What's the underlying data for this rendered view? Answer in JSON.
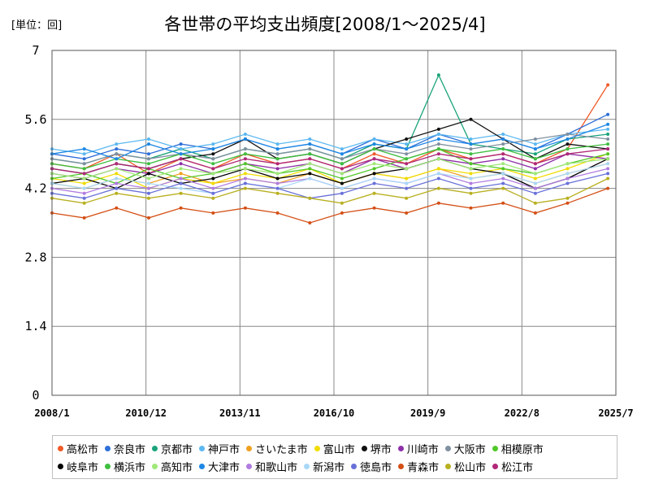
{
  "unit_label": "[単位：回]",
  "chart_data": {
    "type": "line",
    "title": "各世帯の平均支出頻度[2008/1～2025/4]",
    "xlabel": "",
    "ylabel": "",
    "x_ticks": [
      "2008/1",
      "2010/12",
      "2013/11",
      "2016/10",
      "2019/9",
      "2022/8",
      "2025/7"
    ],
    "y_ticks": [
      "7",
      "5.6",
      "4.2",
      "2.8",
      "1.4",
      "0"
    ],
    "ylim": [
      0,
      7
    ],
    "xlim": [
      "2008/1",
      "2025/7"
    ],
    "grid": true,
    "legend_position": "bottom",
    "x": [
      "2008/1",
      "2009/1",
      "2010/1",
      "2011/1",
      "2012/1",
      "2013/1",
      "2014/1",
      "2015/1",
      "2016/1",
      "2017/1",
      "2018/1",
      "2019/1",
      "2020/1",
      "2021/1",
      "2022/1",
      "2023/1",
      "2024/1",
      "2025/4"
    ],
    "series": [
      {
        "name": "高松市",
        "color": "#f05a28",
        "values": [
          4.7,
          4.6,
          4.9,
          4.5,
          4.8,
          4.6,
          4.9,
          4.7,
          4.8,
          4.6,
          4.9,
          4.7,
          5.0,
          4.8,
          4.9,
          4.7,
          5.0,
          6.3
        ]
      },
      {
        "name": "奈良市",
        "color": "#2e6fd8",
        "values": [
          4.9,
          4.8,
          5.0,
          4.9,
          5.1,
          5.0,
          5.2,
          5.0,
          5.1,
          4.9,
          5.2,
          5.0,
          5.3,
          5.1,
          5.2,
          5.0,
          5.3,
          5.7
        ]
      },
      {
        "name": "京都市",
        "color": "#1aa37a",
        "values": [
          4.8,
          4.7,
          4.9,
          4.8,
          5.0,
          4.8,
          5.0,
          4.9,
          5.0,
          4.8,
          5.1,
          5.0,
          6.5,
          5.1,
          5.0,
          4.9,
          5.2,
          5.3
        ]
      },
      {
        "name": "神戸市",
        "color": "#5cb8f0",
        "values": [
          5.0,
          4.9,
          5.1,
          5.2,
          5.0,
          5.1,
          5.3,
          5.1,
          5.2,
          5.0,
          5.2,
          5.1,
          5.3,
          5.2,
          5.3,
          5.1,
          5.3,
          5.4
        ]
      },
      {
        "name": "さいたま市",
        "color": "#f0a020",
        "values": [
          4.3,
          4.2,
          4.4,
          4.3,
          4.5,
          4.3,
          4.4,
          4.3,
          4.5,
          4.3,
          4.5,
          4.4,
          4.6,
          4.4,
          4.5,
          4.3,
          4.5,
          4.7
        ]
      },
      {
        "name": "富山市",
        "color": "#f0dc00",
        "values": [
          4.4,
          4.3,
          4.5,
          4.2,
          4.4,
          4.3,
          4.5,
          4.4,
          4.6,
          4.3,
          4.5,
          4.4,
          4.6,
          4.5,
          4.6,
          4.4,
          4.6,
          4.9
        ]
      },
      {
        "name": "堺市",
        "color": "#111111",
        "values": [
          4.6,
          4.5,
          4.7,
          4.6,
          4.8,
          4.9,
          5.2,
          4.8,
          4.9,
          4.7,
          5.0,
          5.2,
          5.4,
          5.6,
          5.2,
          4.8,
          5.1,
          5.0
        ]
      },
      {
        "name": "川崎市",
        "color": "#8e2fa8",
        "values": [
          4.5,
          4.4,
          4.6,
          4.5,
          4.7,
          4.5,
          4.7,
          4.6,
          4.7,
          4.5,
          4.8,
          4.6,
          4.8,
          4.7,
          4.8,
          4.6,
          4.9,
          4.8
        ]
      },
      {
        "name": "大阪市",
        "color": "#8090a0",
        "values": [
          4.8,
          4.7,
          4.9,
          4.8,
          4.9,
          4.8,
          5.0,
          4.9,
          5.0,
          4.8,
          5.0,
          4.9,
          5.1,
          5.0,
          5.1,
          5.2,
          5.3,
          5.2
        ]
      },
      {
        "name": "相模原市",
        "color": "#50c828",
        "values": [
          4.4,
          4.5,
          4.3,
          4.6,
          4.4,
          4.5,
          4.7,
          4.5,
          4.6,
          4.4,
          4.6,
          4.8,
          5.0,
          4.7,
          4.6,
          4.5,
          4.7,
          4.9
        ]
      },
      {
        "name": "岐阜市",
        "color": "#000000",
        "values": [
          4.3,
          4.4,
          4.2,
          4.5,
          4.3,
          4.4,
          4.6,
          4.4,
          4.5,
          4.3,
          4.5,
          4.6,
          4.8,
          4.6,
          4.5,
          4.2,
          4.4,
          4.8
        ]
      },
      {
        "name": "横浜市",
        "color": "#3fbf3f",
        "values": [
          4.7,
          4.6,
          4.8,
          4.7,
          4.9,
          4.7,
          4.9,
          4.8,
          4.9,
          4.7,
          5.0,
          4.8,
          5.0,
          4.9,
          5.0,
          4.8,
          5.0,
          5.1
        ]
      },
      {
        "name": "高知市",
        "color": "#a0e878",
        "values": [
          4.5,
          4.4,
          4.6,
          4.4,
          4.6,
          4.5,
          4.6,
          4.5,
          4.7,
          4.5,
          4.7,
          4.6,
          4.8,
          4.6,
          4.7,
          4.5,
          4.7,
          4.8
        ]
      },
      {
        "name": "大津市",
        "color": "#1e88e5",
        "values": [
          4.9,
          5.0,
          4.8,
          5.1,
          4.9,
          5.0,
          5.2,
          5.0,
          5.1,
          4.9,
          5.1,
          5.0,
          5.2,
          5.1,
          5.2,
          5.0,
          5.2,
          5.5
        ]
      },
      {
        "name": "和歌山市",
        "color": "#b07ce0",
        "values": [
          4.2,
          4.1,
          4.3,
          4.2,
          4.4,
          4.2,
          4.4,
          4.3,
          4.4,
          4.2,
          4.4,
          4.3,
          4.5,
          4.3,
          4.4,
          4.2,
          4.4,
          4.6
        ]
      },
      {
        "name": "新潟市",
        "color": "#a8d8f8",
        "values": [
          4.3,
          4.2,
          4.4,
          4.3,
          4.2,
          4.1,
          4.3,
          4.2,
          4.4,
          4.2,
          4.4,
          4.3,
          4.5,
          4.4,
          4.5,
          4.3,
          4.5,
          4.7
        ]
      },
      {
        "name": "徳島市",
        "color": "#6870d8",
        "values": [
          4.1,
          4.0,
          4.2,
          4.1,
          4.3,
          4.1,
          4.3,
          4.2,
          4.0,
          4.1,
          4.3,
          4.2,
          4.4,
          4.2,
          4.3,
          4.1,
          4.3,
          4.5
        ]
      },
      {
        "name": "青森市",
        "color": "#d45016",
        "values": [
          3.7,
          3.6,
          3.8,
          3.6,
          3.8,
          3.7,
          3.8,
          3.7,
          3.5,
          3.7,
          3.8,
          3.7,
          3.9,
          3.8,
          3.9,
          3.7,
          3.9,
          4.2
        ]
      },
      {
        "name": "松山市",
        "color": "#b8b020",
        "values": [
          4.0,
          3.9,
          4.1,
          4.0,
          4.1,
          4.0,
          4.2,
          4.1,
          4.0,
          3.9,
          4.1,
          4.0,
          4.2,
          4.1,
          4.2,
          3.9,
          4.0,
          4.4
        ]
      },
      {
        "name": "松江市",
        "color": "#b02878",
        "values": [
          4.6,
          4.5,
          4.7,
          4.6,
          4.8,
          4.6,
          4.8,
          4.7,
          4.8,
          4.6,
          4.8,
          4.7,
          4.9,
          4.8,
          4.9,
          4.7,
          4.9,
          5.0
        ]
      }
    ]
  }
}
